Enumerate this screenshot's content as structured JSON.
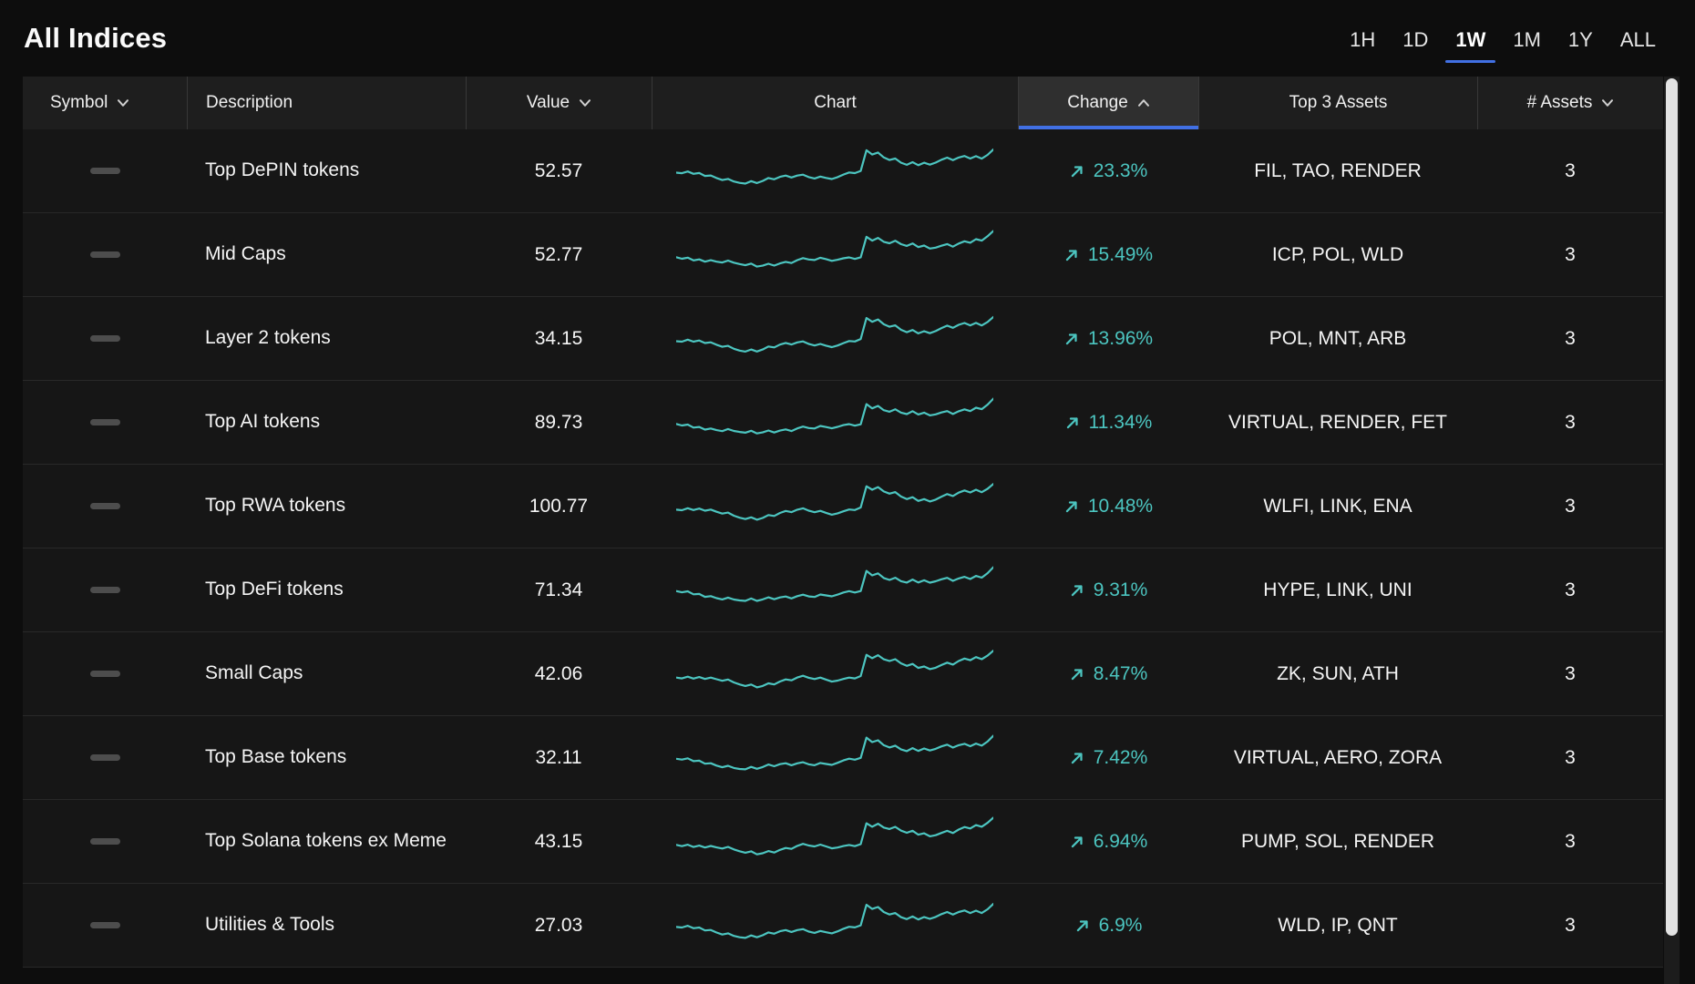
{
  "page": {
    "title": "All Indices"
  },
  "colors": {
    "blue": "#4170e4",
    "teal": "#4cc5c0"
  },
  "time_tabs": [
    {
      "label": "1H",
      "active": false
    },
    {
      "label": "1D",
      "active": false
    },
    {
      "label": "1W",
      "active": true
    },
    {
      "label": "1M",
      "active": false
    },
    {
      "label": "1Y",
      "active": false
    },
    {
      "label": "ALL",
      "active": false
    }
  ],
  "table": {
    "columns": [
      {
        "key": "symbol",
        "label": "Symbol",
        "sort": "down"
      },
      {
        "key": "description",
        "label": "Description",
        "sort": null
      },
      {
        "key": "value",
        "label": "Value",
        "sort": "down"
      },
      {
        "key": "chart",
        "label": "Chart",
        "sort": null
      },
      {
        "key": "change",
        "label": "Change",
        "sort": "up",
        "active": true
      },
      {
        "key": "top3",
        "label": "Top 3 Assets",
        "sort": null
      },
      {
        "key": "assets",
        "label": "# Assets",
        "sort": "down"
      }
    ],
    "rows": [
      {
        "description": "Top DePIN tokens",
        "value": "52.57",
        "change": "23.3%",
        "top3": "FIL, TAO, RENDER",
        "assets": "3"
      },
      {
        "description": "Mid Caps",
        "value": "52.77",
        "change": "15.49%",
        "top3": "ICP, POL, WLD",
        "assets": "3"
      },
      {
        "description": "Layer 2 tokens",
        "value": "34.15",
        "change": "13.96%",
        "top3": "POL, MNT, ARB",
        "assets": "3"
      },
      {
        "description": "Top AI tokens",
        "value": "89.73",
        "change": "11.34%",
        "top3": "VIRTUAL, RENDER, FET",
        "assets": "3"
      },
      {
        "description": "Top RWA tokens",
        "value": "100.77",
        "change": "10.48%",
        "top3": "WLFI, LINK, ENA",
        "assets": "3"
      },
      {
        "description": "Top DeFi tokens",
        "value": "71.34",
        "change": "9.31%",
        "top3": "HYPE, LINK, UNI",
        "assets": "3"
      },
      {
        "description": "Small Caps",
        "value": "42.06",
        "change": "8.47%",
        "top3": "ZK, SUN, ATH",
        "assets": "3"
      },
      {
        "description": "Top Base tokens",
        "value": "32.11",
        "change": "7.42%",
        "top3": "VIRTUAL, AERO, ZORA",
        "assets": "3"
      },
      {
        "description": "Top Solana tokens ex Meme",
        "value": "43.15",
        "change": "6.94%",
        "top3": "PUMP, SOL, RENDER",
        "assets": "3"
      },
      {
        "description": "Utilities & Tools",
        "value": "27.03",
        "change": "6.9%",
        "top3": "WLD, IP, QNT",
        "assets": "3"
      }
    ],
    "sparkline": [
      0.46,
      0.44,
      0.47,
      0.42,
      0.44,
      0.39,
      0.41,
      0.37,
      0.34,
      0.37,
      0.32,
      0.29,
      0.27,
      0.31,
      0.26,
      0.29,
      0.34,
      0.31,
      0.36,
      0.39,
      0.36,
      0.41,
      0.44,
      0.4,
      0.38,
      0.42,
      0.39,
      0.36,
      0.39,
      0.43,
      0.46,
      0.44,
      0.48,
      0.9,
      0.82,
      0.87,
      0.78,
      0.74,
      0.78,
      0.7,
      0.66,
      0.71,
      0.64,
      0.68,
      0.63,
      0.66,
      0.71,
      0.75,
      0.7,
      0.76,
      0.8,
      0.76,
      0.82,
      0.78,
      0.86,
      0.97
    ]
  }
}
